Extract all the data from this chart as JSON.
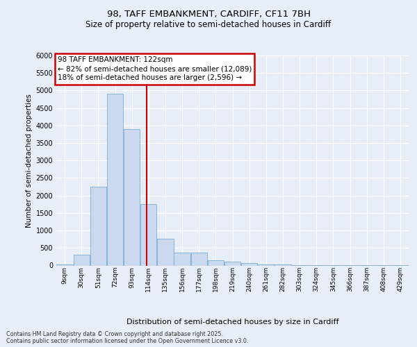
{
  "title_line1": "98, TAFF EMBANKMENT, CARDIFF, CF11 7BH",
  "title_line2": "Size of property relative to semi-detached houses in Cardiff",
  "xlabel": "Distribution of semi-detached houses by size in Cardiff",
  "ylabel": "Number of semi-detached properties",
  "annotation_title": "98 TAFF EMBANKMENT: 122sqm",
  "annotation_line2": "← 82% of semi-detached houses are smaller (12,089)",
  "annotation_line3": "18% of semi-detached houses are larger (2,596) →",
  "footer_line1": "Contains HM Land Registry data © Crown copyright and database right 2025.",
  "footer_line2": "Contains public sector information licensed under the Open Government Licence v3.0.",
  "property_size": 122,
  "bin_labels": [
    "9sqm",
    "30sqm",
    "51sqm",
    "72sqm",
    "93sqm",
    "114sqm",
    "135sqm",
    "156sqm",
    "177sqm",
    "198sqm",
    "219sqm",
    "240sqm",
    "261sqm",
    "282sqm",
    "303sqm",
    "324sqm",
    "345sqm",
    "366sqm",
    "387sqm",
    "408sqm",
    "429sqm"
  ],
  "bin_edges": [
    9,
    30,
    51,
    72,
    93,
    114,
    135,
    156,
    177,
    198,
    219,
    240,
    261,
    282,
    303,
    324,
    345,
    366,
    387,
    408,
    429
  ],
  "bar_heights": [
    20,
    300,
    2250,
    4900,
    3900,
    1750,
    760,
    370,
    370,
    150,
    100,
    60,
    35,
    20,
    12,
    8,
    5,
    3,
    2,
    1,
    1
  ],
  "bar_color": "#cad9ee",
  "bar_edgecolor": "#7aadd4",
  "vline_color": "#cc0000",
  "vline_x": 122,
  "ylim": [
    0,
    6000
  ],
  "yticks": [
    0,
    500,
    1000,
    1500,
    2000,
    2500,
    3000,
    3500,
    4000,
    4500,
    5000,
    5500,
    6000
  ],
  "bg_color": "#e8eef8",
  "annotation_box_facecolor": "#ffffff",
  "annotation_box_edgecolor": "#cc0000"
}
